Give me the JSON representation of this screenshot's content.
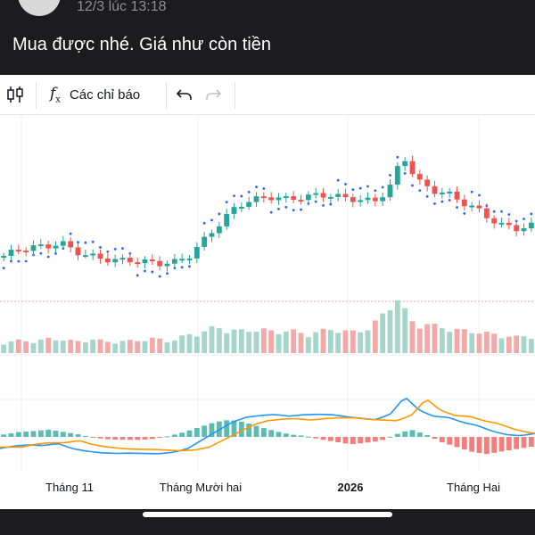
{
  "post": {
    "timestamp": "12/3 lúc 13:18",
    "caption": "Mua được nhé. Giá như còn tiền"
  },
  "toolbar": {
    "indicators_label": "Các chỉ báo",
    "fx_symbol": "f",
    "fx_sub": "x"
  },
  "colors": {
    "up": "#26a69a",
    "down": "#ef5350",
    "volume_up": "#a5d6c9",
    "volume_down": "#f4a9a9",
    "sar": "#2962ff",
    "macd_line": "#2196f3",
    "signal_line": "#ff9800"
  },
  "chart_data": {
    "type": "candlestick",
    "x_axis_labels": [
      "Tháng 11",
      "Tháng Mười hai",
      "2026",
      "Tháng Hai"
    ],
    "x_axis_bold": "2026",
    "price_trend": [
      0.3,
      0.34,
      0.36,
      0.36,
      0.39,
      0.33,
      0.3,
      0.28,
      0.27,
      0.27,
      0.26,
      0.25,
      0.26,
      0.3,
      0.4,
      0.5,
      0.6,
      0.66,
      0.68,
      0.69,
      0.67,
      0.69,
      0.7,
      0.7,
      0.68,
      0.67,
      0.66,
      0.74,
      0.96,
      0.8,
      0.73,
      0.72,
      0.66,
      0.62,
      0.55,
      0.5,
      0.48,
      0.5
    ],
    "volume_level": [
      0.18,
      0.22,
      0.2,
      0.25,
      0.23,
      0.2,
      0.24,
      0.19,
      0.21,
      0.22,
      0.26,
      0.2,
      0.3,
      0.35,
      0.45,
      0.4,
      0.38,
      0.42,
      0.36,
      0.4,
      0.32,
      0.38,
      0.42,
      0.36,
      0.4,
      0.6,
      1.0,
      0.55,
      0.5,
      0.45,
      0.4,
      0.38,
      0.35,
      0.3,
      0.28,
      0.3
    ],
    "macd_hist_level": [
      0.05,
      0.1,
      0.12,
      0.15,
      0.1,
      0.05,
      -0.02,
      -0.05,
      -0.06,
      -0.06,
      -0.04,
      0.02,
      0.1,
      0.2,
      0.3,
      0.35,
      0.3,
      0.2,
      0.12,
      0.05,
      0.02,
      -0.05,
      -0.1,
      -0.15,
      -0.12,
      -0.08,
      0.05,
      0.15,
      0.05,
      -0.1,
      -0.2,
      -0.3,
      -0.35,
      -0.3,
      -0.25,
      -0.2
    ]
  }
}
